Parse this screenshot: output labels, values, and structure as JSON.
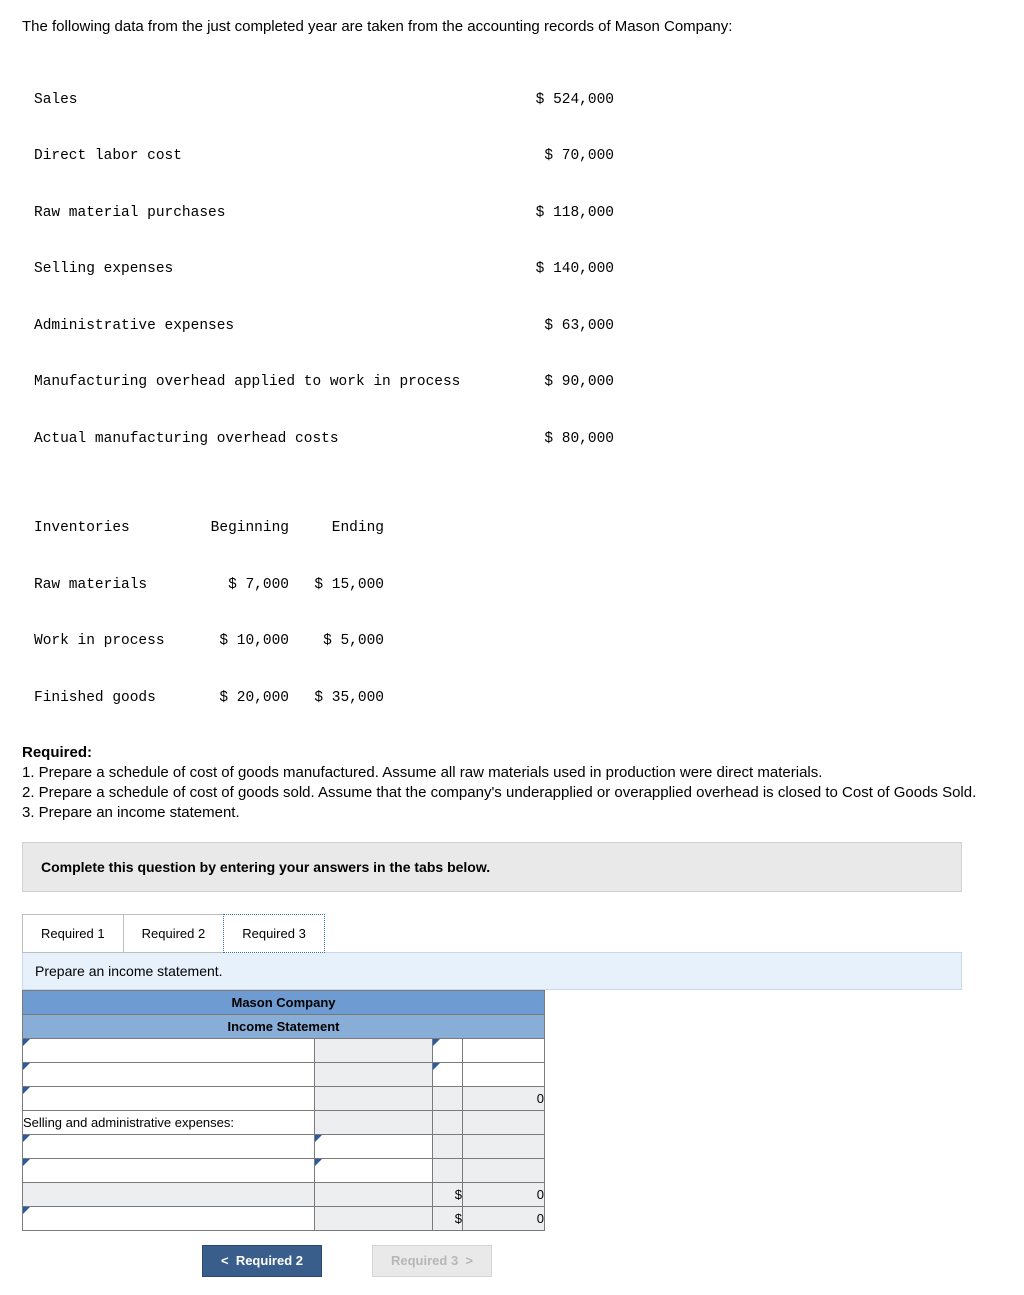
{
  "intro": "The following data from the just completed year are taken from the accounting records of Mason Company:",
  "financials": [
    {
      "label": "Sales",
      "value": "$ 524,000"
    },
    {
      "label": "Direct labor cost",
      "value": "$ 70,000"
    },
    {
      "label": "Raw material purchases",
      "value": "$ 118,000"
    },
    {
      "label": "Selling expenses",
      "value": "$ 140,000"
    },
    {
      "label": "Administrative expenses",
      "value": "$ 63,000"
    },
    {
      "label": "Manufacturing overhead applied to work in process",
      "value": "$ 90,000"
    },
    {
      "label": "Actual manufacturing overhead costs",
      "value": "$ 80,000"
    }
  ],
  "inventory": {
    "head": {
      "c1": "Inventories",
      "c2": "Beginning",
      "c3": "Ending"
    },
    "rows": [
      {
        "c1": "Raw materials",
        "c2": "$ 7,000",
        "c3": "$ 15,000"
      },
      {
        "c1": "Work in process",
        "c2": "$ 10,000",
        "c3": "$ 5,000"
      },
      {
        "c1": "Finished goods",
        "c2": "$ 20,000",
        "c3": "$ 35,000"
      }
    ]
  },
  "required": {
    "title": "Required:",
    "r1": "1. Prepare a schedule of cost of goods manufactured. Assume all raw materials used in production were direct materials.",
    "r2": "2. Prepare a schedule of cost of goods sold. Assume that the company's underapplied or overapplied overhead is closed to Cost of Goods Sold.",
    "r3": "3. Prepare an income statement."
  },
  "instruction": "Complete this question by entering your answers in the tabs below.",
  "tabs": {
    "t1": "Required 1",
    "t2": "Required 2",
    "t3": "Required 3"
  },
  "tab_desc": "Prepare an income statement.",
  "answer_table": {
    "title1": "Mason Company",
    "title2": "Income Statement",
    "row_label": "Selling and administrative expenses:",
    "zero": "0",
    "dollar": "$"
  },
  "nav": {
    "prev_chev": "<",
    "prev": "Required 2",
    "next": "Required 3",
    "next_chev": ">"
  }
}
